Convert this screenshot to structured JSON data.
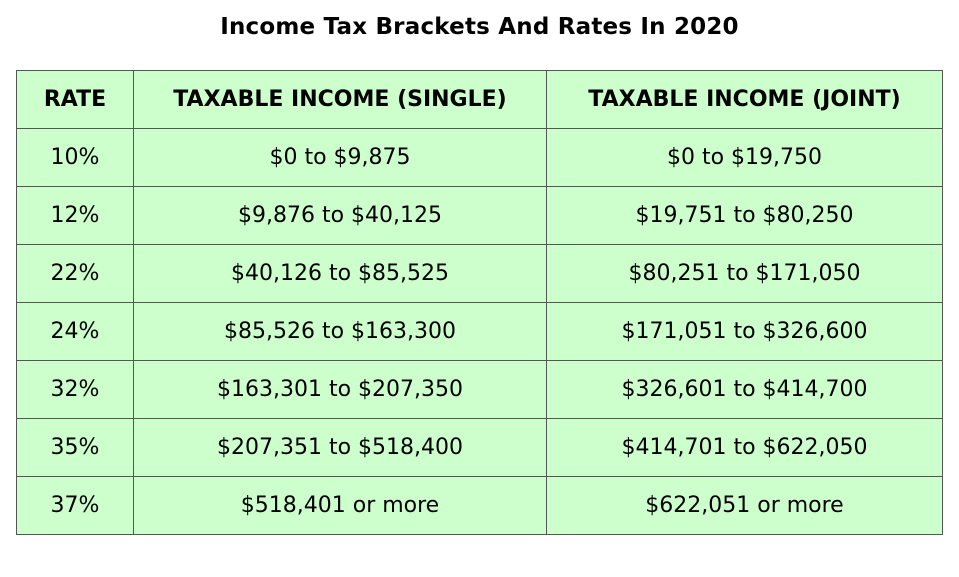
{
  "title": "Income Tax Brackets And Rates In 2020",
  "table": {
    "headers": [
      "RATE",
      "TAXABLE INCOME (SINGLE)",
      "TAXABLE INCOME (JOINT)"
    ],
    "rows": [
      [
        "10%",
        "$0 to $9,875",
        "$0 to $19,750"
      ],
      [
        "12%",
        "$9,876 to $40,125",
        "$19,751 to $80,250"
      ],
      [
        "22%",
        "$40,126 to $85,525",
        "$80,251 to $171,050"
      ],
      [
        "24%",
        "$85,526 to $163,300",
        "$171,051 to $326,600"
      ],
      [
        "32%",
        "$163,301 to $207,350",
        "$326,601 to $414,700"
      ],
      [
        "35%",
        "$207,351 to $518,400",
        "$414,701 to $622,050"
      ],
      [
        "37%",
        "$518,401 or more",
        "$622,051 or more"
      ]
    ]
  },
  "colors": {
    "cell_background": "#ccffcc",
    "border": "#555555",
    "text": "#000000"
  }
}
